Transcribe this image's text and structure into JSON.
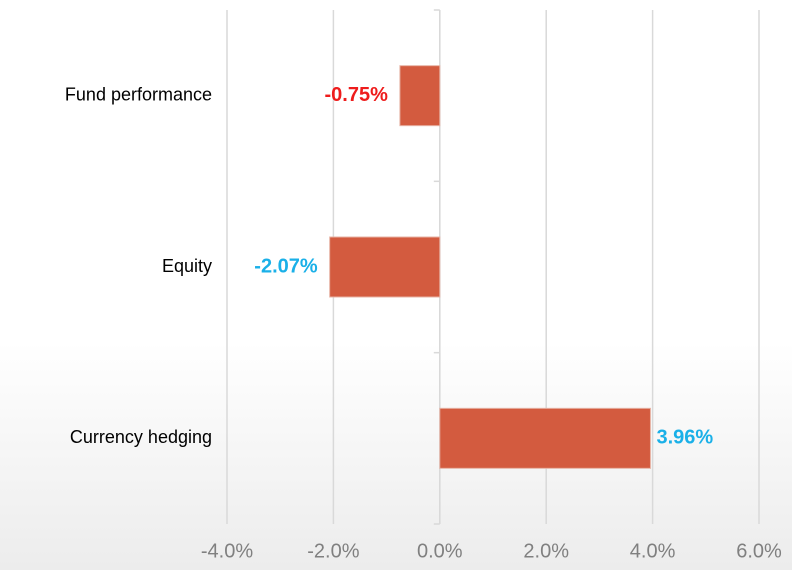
{
  "chart_data": {
    "type": "barh",
    "categories": [
      "Fund performance",
      "Equity",
      "Currency hedging"
    ],
    "values": [
      -0.75,
      -2.07,
      3.96
    ],
    "value_labels": [
      "-0.75%",
      "-2.07%",
      "3.96%"
    ],
    "value_label_colors": [
      "#ee1c1c",
      "#1ab0e8",
      "#1ab0e8"
    ],
    "color": "#d35b3f",
    "xlim": [
      -4,
      6
    ],
    "xticks": [
      {
        "value": -4,
        "label": "-4.0%"
      },
      {
        "value": -2,
        "label": "-2.0%"
      },
      {
        "value": 0,
        "label": "0.0%"
      },
      {
        "value": 2,
        "label": "2.0%"
      },
      {
        "value": 4,
        "label": "4.0%"
      },
      {
        "value": 6,
        "label": "6.0%"
      }
    ],
    "grid": true
  }
}
